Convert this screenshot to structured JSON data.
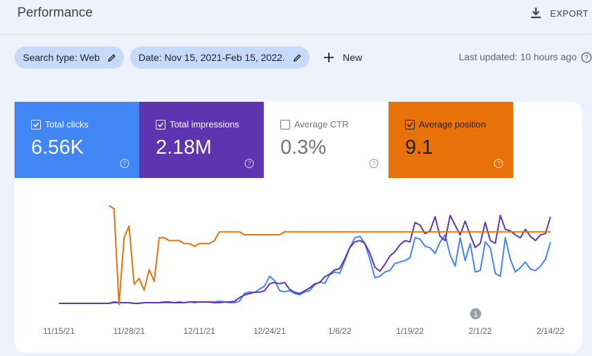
{
  "header": {
    "title": "Performance",
    "export_label": "EXPORT"
  },
  "filters": {
    "search_type": "Search type: Web",
    "date": "Date: Nov 15, 2021-Feb 15, 2022",
    "new_label": "New"
  },
  "last_updated": "Last updated: 10 hours ago",
  "metrics": [
    {
      "label": "Total clicks",
      "value": "6.56K",
      "checked": true,
      "color": "#4285f4"
    },
    {
      "label": "Total impressions",
      "value": "2.18M",
      "checked": true,
      "color": "#5e35b1"
    },
    {
      "label": "Average CTR",
      "value": "0.3%",
      "checked": false,
      "color": "#ffffff"
    },
    {
      "label": "Average position",
      "value": "9.1",
      "checked": true,
      "color": "#e8710a"
    }
  ],
  "annotation_label": "1",
  "chart_data": {
    "type": "line",
    "x_tick_labels": [
      "11/15/21",
      "11/28/21",
      "12/11/21",
      "12/24/21",
      "1/6/22",
      "1/19/22",
      "2/1/22",
      "2/14/22"
    ],
    "x_start": "2021-11-15",
    "x_end": "2022-02-15",
    "annotation": {
      "label": "1",
      "date": "2022-02-01"
    },
    "series": [
      {
        "name": "Total clicks",
        "color": "#4285f4",
        "values": [
          0,
          0,
          0,
          0,
          0,
          0,
          0,
          0,
          0,
          0,
          0,
          1,
          1,
          1,
          1,
          0,
          0,
          1,
          1,
          1,
          1,
          1,
          1,
          1,
          2,
          1,
          2,
          1,
          2,
          2,
          2,
          2,
          3,
          2,
          1,
          1,
          3,
          14,
          16,
          15,
          20,
          24,
          38,
          32,
          18,
          16,
          18,
          14,
          12,
          16,
          18,
          26,
          30,
          28,
          40,
          44,
          42,
          60,
          78,
          92,
          94,
          84,
          62,
          36,
          38,
          44,
          46,
          56,
          58,
          60,
          64,
          92,
          90,
          80,
          78,
          70,
          86,
          96,
          68,
          52,
          92,
          60,
          84,
          44,
          46,
          86,
          78,
          42,
          38,
          92,
          62,
          44,
          50,
          58,
          48,
          46,
          52,
          62,
          86
        ]
      },
      {
        "name": "Total impressions",
        "color": "#5e35b1",
        "values": [
          0,
          0,
          0,
          0,
          0,
          0,
          0,
          0,
          0,
          0,
          0,
          2,
          1,
          1,
          1,
          0,
          0,
          1,
          1,
          1,
          1,
          2,
          2,
          1,
          1,
          1,
          2,
          2,
          2,
          2,
          2,
          1,
          1,
          2,
          2,
          3,
          8,
          12,
          14,
          16,
          16,
          18,
          28,
          30,
          28,
          30,
          20,
          16,
          14,
          18,
          22,
          28,
          30,
          38,
          42,
          48,
          50,
          64,
          80,
          88,
          90,
          86,
          72,
          52,
          46,
          56,
          68,
          74,
          84,
          90,
          88,
          116,
          112,
          100,
          104,
          124,
          96,
          90,
          126,
          112,
          98,
          118,
          98,
          80,
          86,
          116,
          90,
          86,
          126,
          106,
          104,
          98,
          94,
          106,
          96,
          90,
          98,
          100,
          124
        ]
      },
      {
        "name": "Average position",
        "color": "#e8710a",
        "values": [
          null,
          null,
          null,
          null,
          null,
          null,
          null,
          null,
          null,
          null,
          1,
          2,
          35,
          12,
          8,
          28,
          26,
          30,
          23,
          27,
          12,
          12,
          13,
          13,
          13,
          14,
          14,
          15,
          14,
          14,
          14,
          13,
          10,
          10,
          10,
          10,
          10,
          11,
          11,
          11,
          11,
          11,
          11,
          11,
          11,
          10,
          10,
          10,
          10,
          10,
          10,
          10,
          10,
          10,
          10,
          10,
          10,
          10,
          10,
          10,
          10,
          10,
          10,
          10,
          10,
          10,
          10,
          10,
          10,
          10,
          10,
          10,
          10,
          10,
          10,
          10,
          10,
          10,
          10,
          10,
          10,
          10,
          10,
          10,
          10,
          10,
          10,
          10,
          10,
          10,
          10,
          10,
          10,
          10,
          10,
          10,
          10,
          10,
          10
        ]
      }
    ],
    "grid": false,
    "legend": "none"
  }
}
